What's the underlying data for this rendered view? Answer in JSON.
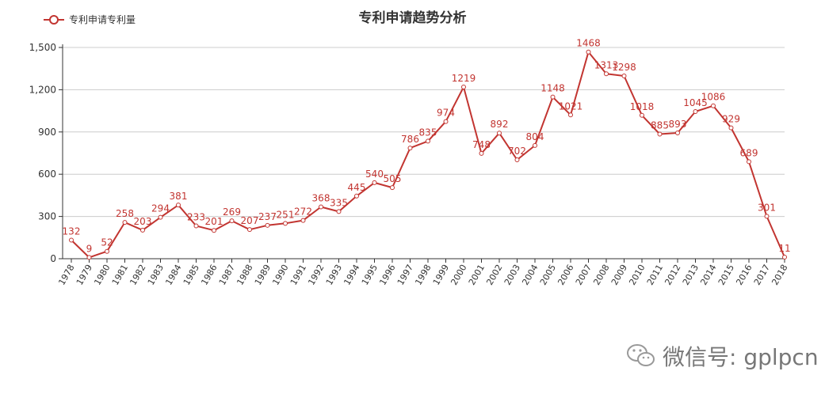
{
  "title": "专利申请趋势分析",
  "legend": {
    "label": "专利申请专利量"
  },
  "watermark": {
    "text": "微信号: gplpcn",
    "icon": "wechat-icon"
  },
  "colors": {
    "series": "#c23531",
    "axis": "#333333",
    "grid": "#cccccc"
  },
  "chart_data": {
    "type": "line",
    "title": "专利申请趋势分析",
    "xlabel": "",
    "ylabel": "",
    "ylim": [
      0,
      1500
    ],
    "yticks": [
      "0",
      "300",
      "600",
      "900",
      "1,200",
      "1,500"
    ],
    "grid": true,
    "legend_position": "top-left",
    "categories": [
      "1978",
      "1979",
      "1980",
      "1981",
      "1982",
      "1983",
      "1984",
      "1985",
      "1986",
      "1987",
      "1988",
      "1989",
      "1990",
      "1991",
      "1992",
      "1993",
      "1994",
      "1995",
      "1996",
      "1997",
      "1998",
      "1999",
      "2000",
      "2001",
      "2002",
      "2003",
      "2004",
      "2005",
      "2006",
      "2007",
      "2008",
      "2009",
      "2010",
      "2011",
      "2012",
      "2013",
      "2014",
      "2015",
      "2016",
      "2017",
      "2018"
    ],
    "series": [
      {
        "name": "专利申请专利量",
        "values": [
          132,
          9,
          52,
          258,
          203,
          294,
          381,
          233,
          201,
          269,
          207,
          237,
          251,
          272,
          368,
          335,
          445,
          540,
          505,
          786,
          835,
          974,
          1219,
          748,
          892,
          702,
          804,
          1148,
          1021,
          1468,
          1313,
          1298,
          1018,
          885,
          893,
          1045,
          1086,
          929,
          689,
          301,
          11
        ]
      }
    ]
  }
}
